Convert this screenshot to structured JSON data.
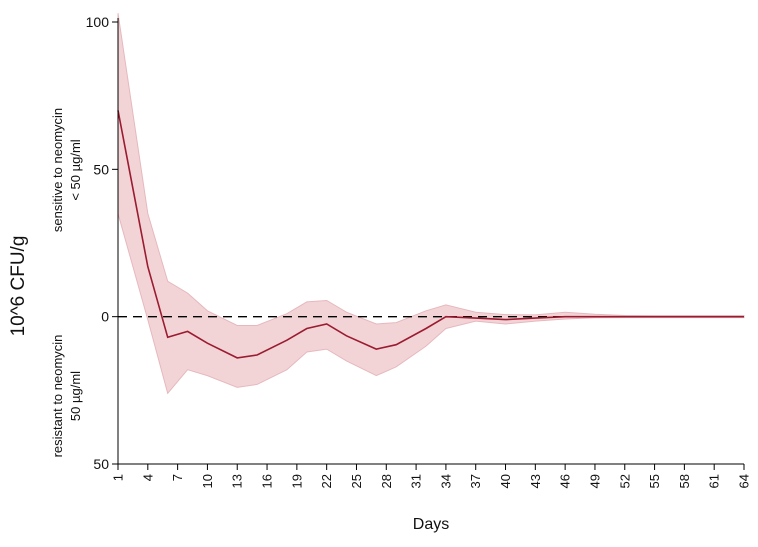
{
  "chart_data": {
    "type": "line",
    "title": "",
    "xlabel": "Days",
    "ylabel": "10^6 CFU/g",
    "region_labels": {
      "upper": [
        "sensitive to neomycin",
        "< 50 µg/ml"
      ],
      "lower": [
        "resistant to neomycin",
        "50 µg/ml"
      ]
    },
    "x_ticks": [
      "1",
      "4",
      "7",
      "10",
      "13",
      "16",
      "19",
      "22",
      "25",
      "28",
      "31",
      "34",
      "37",
      "40",
      "43",
      "46",
      "49",
      "52",
      "55",
      "58",
      "61",
      "64"
    ],
    "y_ticks": [
      {
        "value": 100,
        "label": "100"
      },
      {
        "value": 50,
        "label": "50"
      },
      {
        "value": 0,
        "label": "0"
      },
      {
        "value": -50,
        "label": "50"
      }
    ],
    "xlim": [
      1,
      64
    ],
    "ylim": [
      -50,
      100
    ],
    "reference_line": 0,
    "grid": false,
    "colors": {
      "line": "#9b1b30",
      "band": "#f2d4d7",
      "band_edge": "#e6b8bd",
      "reference": "#000000"
    },
    "series": [
      {
        "x": [
          1,
          4,
          6,
          8,
          10,
          13,
          15,
          18,
          20,
          22,
          24,
          27,
          29,
          32,
          34,
          37,
          40,
          43,
          46,
          49,
          52,
          55,
          58,
          61,
          64
        ],
        "y": [
          70,
          17,
          -7,
          -5,
          -9,
          -14,
          -13,
          -8,
          -4,
          -2.5,
          -6.5,
          -11,
          -9.5,
          -4,
          0,
          -0.5,
          -1,
          -0.5,
          0,
          0,
          0,
          0,
          0,
          0,
          0
        ],
        "upper": [
          103,
          35,
          12,
          8,
          2,
          -3,
          -3,
          1,
          5,
          5.5,
          1.5,
          -2.5,
          -2,
          2,
          4,
          1.5,
          0.7,
          0.6,
          1.5,
          0.8,
          0.4,
          0.3,
          0.3,
          0.3,
          0.3
        ],
        "lower": [
          35,
          -1,
          -26,
          -18,
          -20,
          -24,
          -23,
          -18,
          -12,
          -11,
          -15,
          -20,
          -17,
          -10,
          -4,
          -1.5,
          -2.5,
          -1.5,
          -0.8,
          -0.4,
          -0.3,
          -0.3,
          -0.3,
          -0.3,
          -0.3
        ]
      }
    ]
  }
}
